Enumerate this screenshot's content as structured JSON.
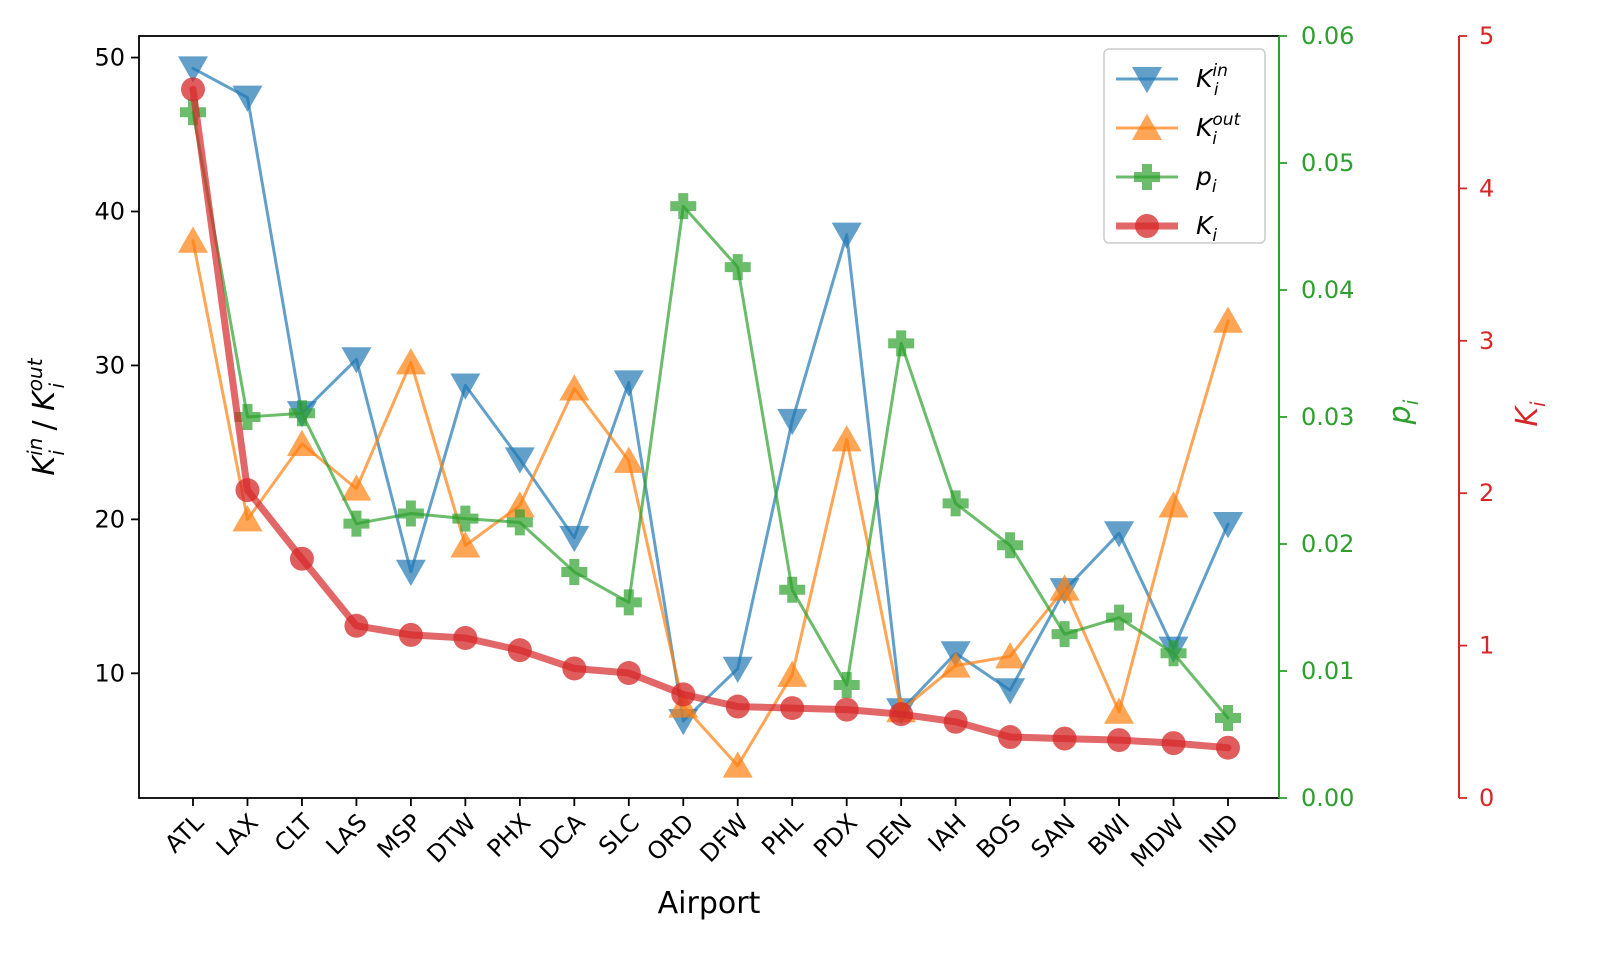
{
  "chart_data": {
    "type": "line",
    "xlabel": "Airport",
    "categories": [
      "ATL",
      "LAX",
      "CLT",
      "LAS",
      "MSP",
      "DTW",
      "PHX",
      "DCA",
      "SLC",
      "ORD",
      "DFW",
      "PHL",
      "PDX",
      "DEN",
      "IAH",
      "BOS",
      "SAN",
      "BWI",
      "MDW",
      "IND"
    ],
    "axes": {
      "left": {
        "label_main": "K",
        "label_sub": "i",
        "label_sup1": "in",
        "label_sep": " / ",
        "label_sup2": "out",
        "ylim": [
          1.9,
          51.4
        ],
        "ticks": [
          10,
          20,
          30,
          40,
          50
        ],
        "tick_labels": [
          "10",
          "20",
          "30",
          "40",
          "50"
        ],
        "color": "#000000"
      },
      "right1": {
        "label_main": "p",
        "label_sub": "i",
        "ylim": [
          0.0,
          0.06
        ],
        "ticks": [
          0.0,
          0.01,
          0.02,
          0.03,
          0.04,
          0.05,
          0.06
        ],
        "tick_labels": [
          "0.00",
          "0.01",
          "0.02",
          "0.03",
          "0.04",
          "0.05",
          "0.06"
        ],
        "color": "#2ca02c"
      },
      "right2": {
        "label_main": "K",
        "label_sub": "i",
        "ylim": [
          0,
          5
        ],
        "ticks": [
          0,
          1,
          2,
          3,
          4,
          5
        ],
        "tick_labels": [
          "0",
          "1",
          "2",
          "3",
          "4",
          "5"
        ],
        "color": "#d62728"
      }
    },
    "series": [
      {
        "id": "kin",
        "name": "K_i^in",
        "legend_main": "K",
        "legend_sub": "i",
        "legend_sup": "in",
        "axis": "left",
        "color": "#1f77b4",
        "marker": "triangle-down",
        "values": [
          49.3,
          47.4,
          26.9,
          30.4,
          16.6,
          28.7,
          23.9,
          18.8,
          28.9,
          6.9,
          10.3,
          26.4,
          38.5,
          7.6,
          11.3,
          8.9,
          15.4,
          19.1,
          11.6,
          19.7
        ]
      },
      {
        "id": "kout",
        "name": "K_i^out",
        "legend_main": "K",
        "legend_sub": "i",
        "legend_sup": "out",
        "axis": "left",
        "color": "#ff7f0e",
        "marker": "triangle-up",
        "values": [
          38.1,
          20.0,
          24.9,
          22.0,
          30.2,
          18.3,
          20.9,
          28.5,
          23.8,
          7.9,
          4.0,
          9.9,
          25.2,
          7.6,
          10.5,
          11.1,
          15.5,
          7.5,
          20.9,
          32.9
        ]
      },
      {
        "id": "pi",
        "name": "p_i",
        "legend_main": "p",
        "legend_sub": "i",
        "legend_sup": "",
        "axis": "right1",
        "color": "#2ca02c",
        "marker": "plus",
        "values": [
          0.054,
          0.03,
          0.0303,
          0.0216,
          0.0224,
          0.022,
          0.0217,
          0.0178,
          0.0154,
          0.0466,
          0.0418,
          0.0164,
          0.0089,
          0.0358,
          0.0232,
          0.0199,
          0.0129,
          0.0142,
          0.0114,
          0.0063
        ]
      },
      {
        "id": "ki",
        "name": "K_i",
        "legend_main": "K",
        "legend_sub": "i",
        "legend_sup": "",
        "axis": "right2",
        "color": "#d62728",
        "marker": "circle",
        "values": [
          4.65,
          2.02,
          1.57,
          1.13,
          1.07,
          1.05,
          0.97,
          0.85,
          0.82,
          0.68,
          0.6,
          0.59,
          0.58,
          0.55,
          0.5,
          0.4,
          0.39,
          0.38,
          0.36,
          0.33
        ]
      }
    ],
    "legend_position": "top-right"
  }
}
